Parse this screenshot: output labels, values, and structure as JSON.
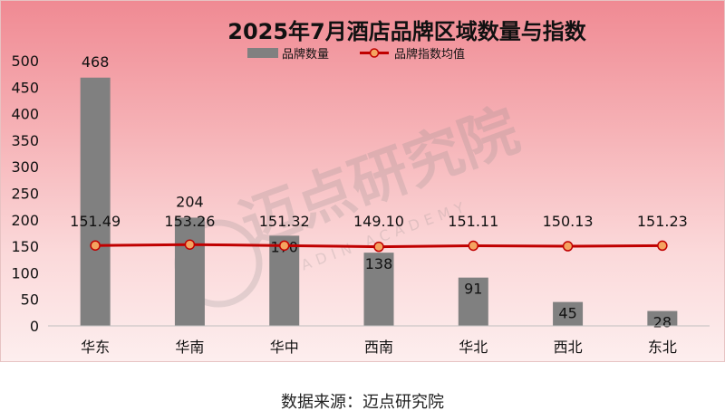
{
  "chart_data": {
    "type": "bar",
    "title": "2025年7月酒店品牌区域数量与指数",
    "categories": [
      "华东",
      "华南",
      "华中",
      "西南",
      "华北",
      "西北",
      "东北"
    ],
    "series": [
      {
        "name": "品牌数量",
        "type": "bar",
        "values": [
          468,
          204,
          170,
          138,
          91,
          45,
          28
        ],
        "color": "#808080"
      },
      {
        "name": "品牌指数均值",
        "type": "line",
        "values": [
          151.49,
          153.26,
          151.32,
          149.1,
          151.11,
          150.13,
          151.23
        ],
        "color": "#c00000",
        "marker_color": "#f4a460"
      }
    ],
    "value_labels": [
      "151.49",
      "153.26",
      "151.32",
      "149.10",
      "151.11",
      "150.13",
      "151.23"
    ],
    "yticks": [
      0,
      50,
      100,
      150,
      200,
      250,
      300,
      350,
      400,
      450,
      500
    ],
    "ylim": [
      0,
      500
    ],
    "legend": "top-center",
    "grid": false
  },
  "watermark": {
    "cn": "迈点研究院",
    "en": "MEADIN ACADEMY"
  },
  "source": "数据来源：迈点研究院"
}
